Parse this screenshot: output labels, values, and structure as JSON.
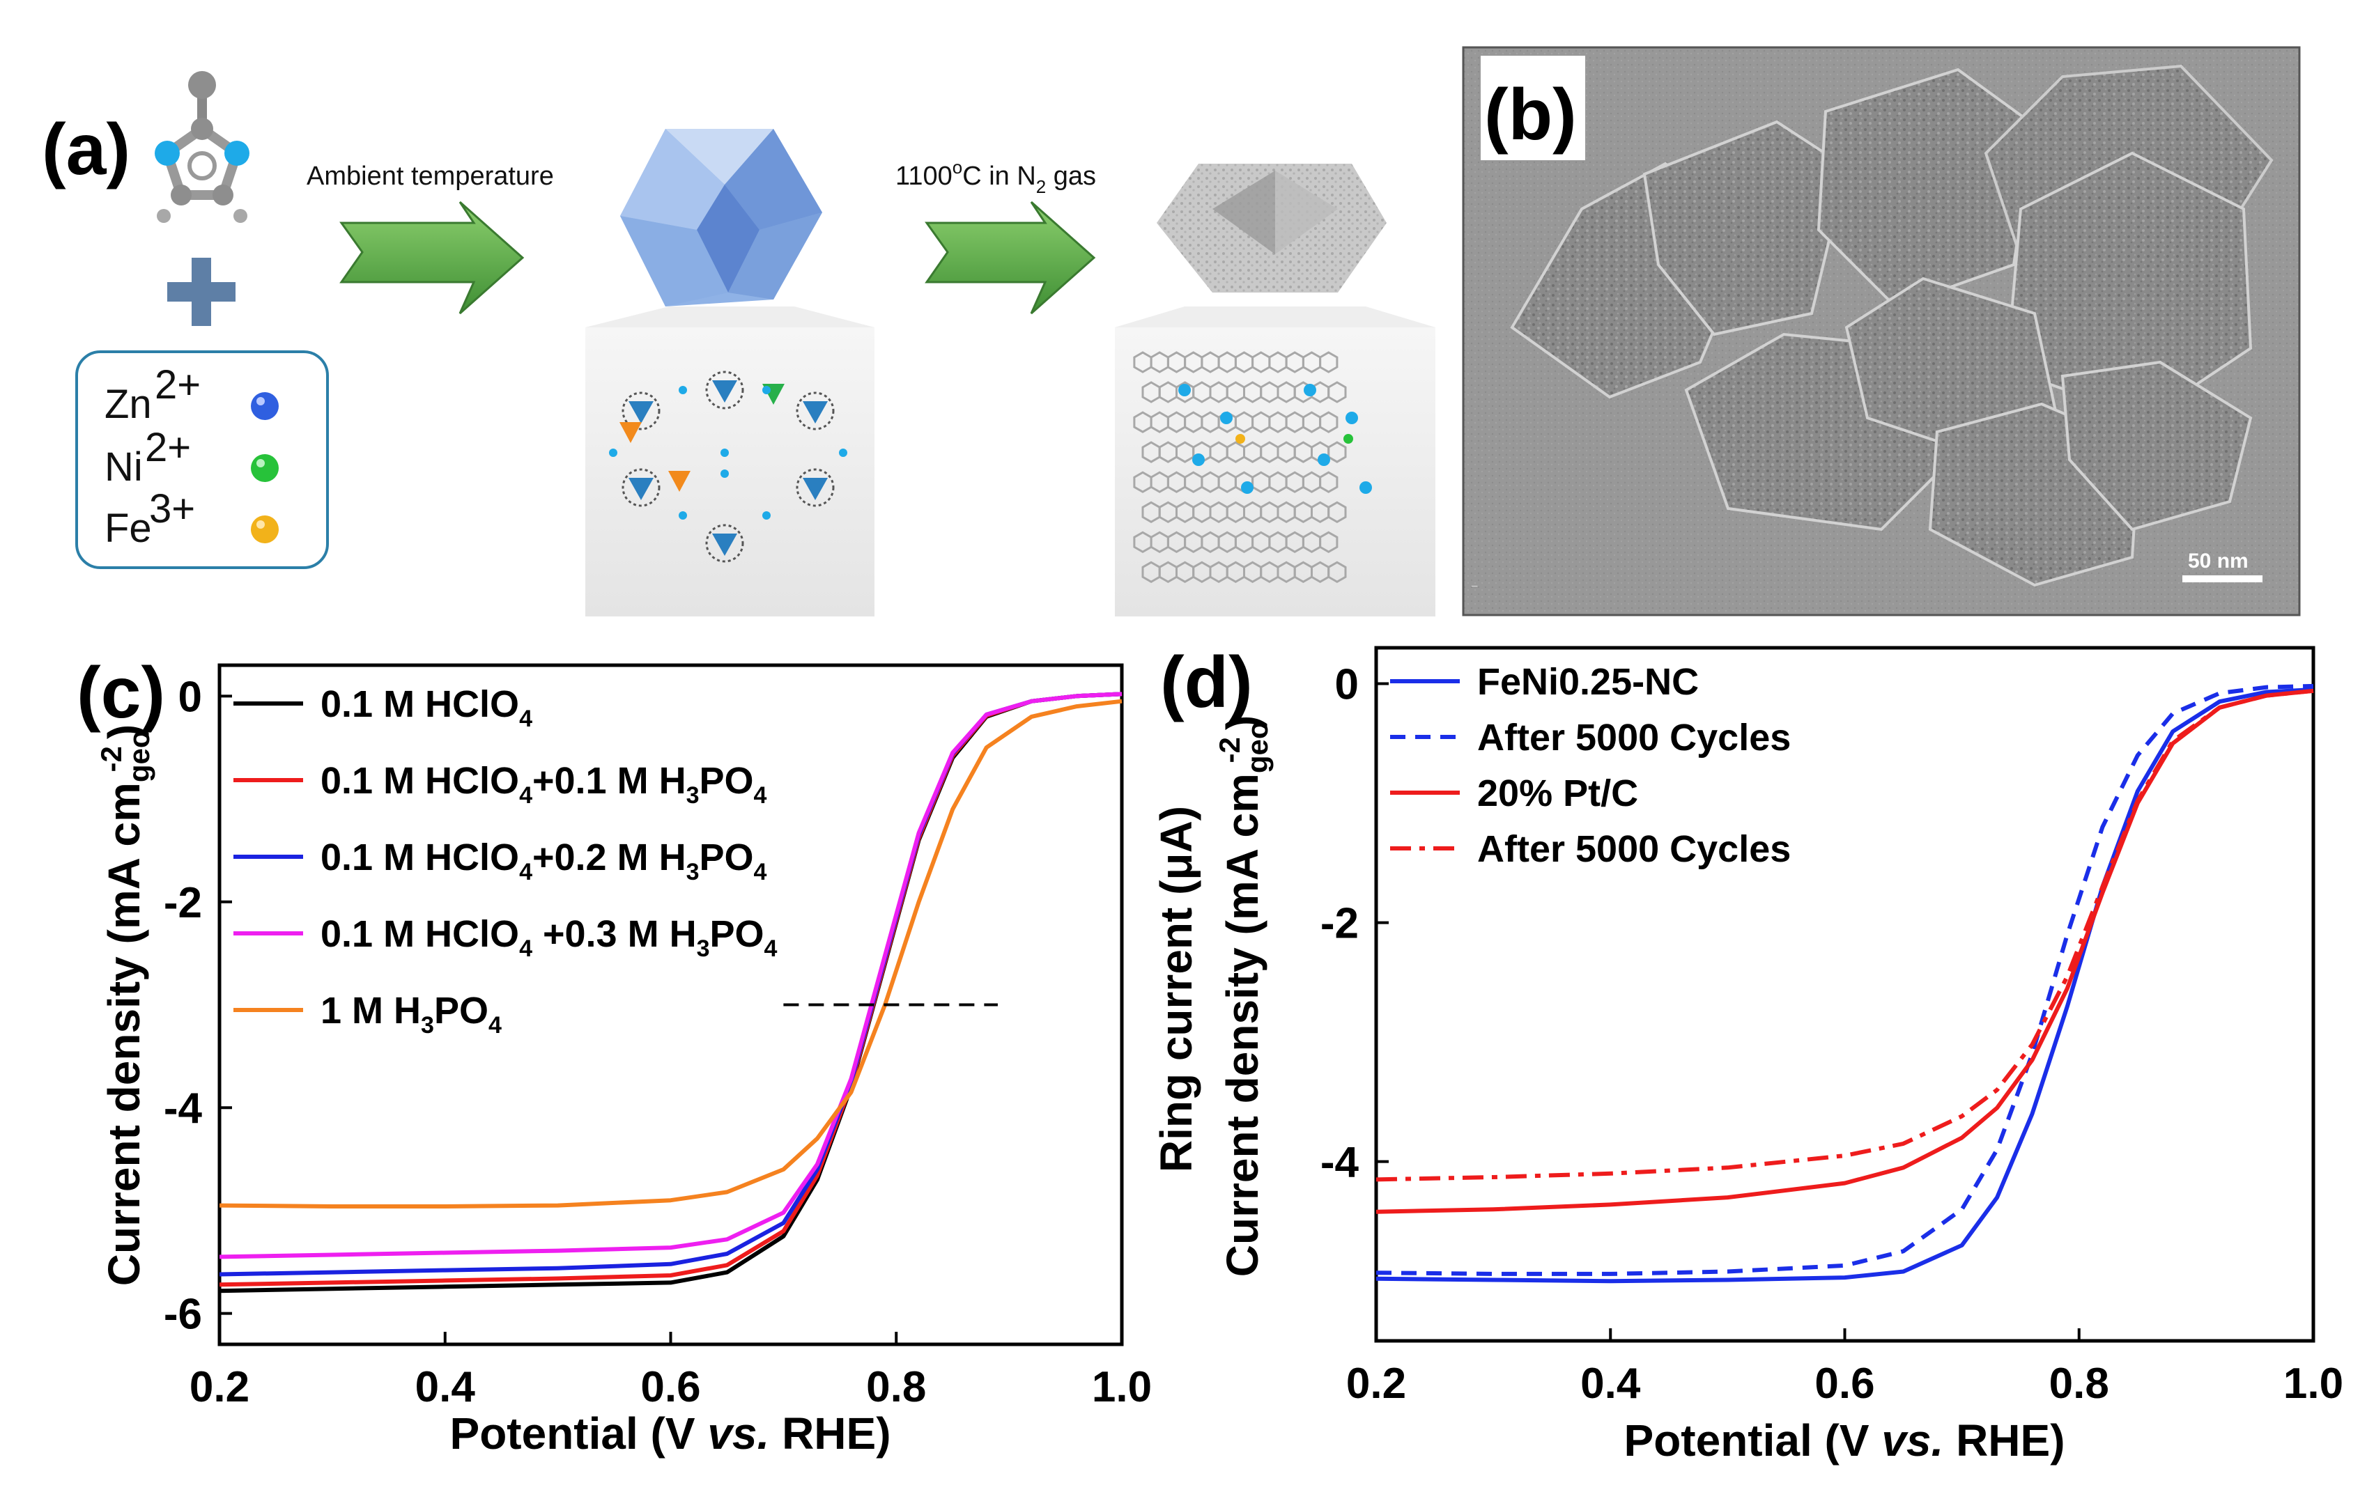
{
  "panel_labels": {
    "a": "(a)",
    "b": "(b)",
    "c": "(c)",
    "d": "(d)"
  },
  "panel_a": {
    "step1_label": "Ambient temperature",
    "step2_label_main": "1100",
    "step2_label_sup": "o",
    "step2_label_mid": "C in N",
    "step2_label_sub": "2",
    "step2_label_end": " gas",
    "ions": [
      {
        "symbol": "Zn",
        "charge": "2+",
        "color": "#2f5fe0"
      },
      {
        "symbol": "Ni",
        "charge": "2+",
        "color": "#27c23a"
      },
      {
        "symbol": "Fe",
        "charge": "3+",
        "color": "#f2b21a"
      }
    ]
  },
  "panel_b": {
    "scale_bar": "50 nm"
  },
  "chart_data": [
    {
      "panel": "c",
      "type": "line",
      "xlabel_pre": "Potential (V ",
      "xlabel_it": "vs.",
      "xlabel_post": " RHE)",
      "ylabel": "Current density (mA cm",
      "ylabel_sub": "geo",
      "ylabel_sup": "-2",
      "ylabel_end": ")",
      "xlim": [
        0.2,
        1.0
      ],
      "ylim": [
        -6.3,
        0.3
      ],
      "xticks": [
        "0.2",
        "0.4",
        "0.6",
        "0.8",
        "1.0"
      ],
      "yticks": [
        "0",
        "-2",
        "-4",
        "-6"
      ],
      "reference_line": {
        "y": -3.0,
        "x": [
          0.7,
          0.89
        ],
        "style": "dashed"
      },
      "series": [
        {
          "name": "0.1 M HClO4",
          "legend": [
            "0.1 M HClO",
            "4",
            "",
            "",
            ""
          ],
          "color": "#000000",
          "x": [
            0.2,
            0.3,
            0.4,
            0.5,
            0.6,
            0.65,
            0.7,
            0.73,
            0.76,
            0.79,
            0.82,
            0.85,
            0.88,
            0.92,
            0.96,
            1.0
          ],
          "y": [
            -5.78,
            -5.76,
            -5.74,
            -5.72,
            -5.7,
            -5.6,
            -5.25,
            -4.7,
            -3.8,
            -2.6,
            -1.4,
            -0.6,
            -0.2,
            -0.05,
            0.0,
            0.02
          ]
        },
        {
          "name": "0.1 M HClO4+0.1 M H3PO4",
          "legend": [
            "0.1 M HClO",
            "4",
            "+0.1 M H",
            "3",
            "PO",
            "4"
          ],
          "color": "#ee1c1c",
          "x": [
            0.2,
            0.3,
            0.4,
            0.5,
            0.6,
            0.65,
            0.7,
            0.73,
            0.76,
            0.79,
            0.82,
            0.85,
            0.88,
            0.92,
            0.96,
            1.0
          ],
          "y": [
            -5.72,
            -5.7,
            -5.68,
            -5.66,
            -5.63,
            -5.53,
            -5.2,
            -4.66,
            -3.78,
            -2.58,
            -1.38,
            -0.58,
            -0.19,
            -0.05,
            0.0,
            0.02
          ]
        },
        {
          "name": "0.1 M HClO4+0.2 M H3PO4",
          "legend": [
            "0.1 M HClO",
            "4",
            "+0.2 M H",
            "3",
            "PO",
            "4"
          ],
          "color": "#1a22e0",
          "x": [
            0.2,
            0.3,
            0.4,
            0.5,
            0.6,
            0.65,
            0.7,
            0.73,
            0.76,
            0.79,
            0.82,
            0.85,
            0.88,
            0.92,
            0.96,
            1.0
          ],
          "y": [
            -5.62,
            -5.6,
            -5.58,
            -5.56,
            -5.52,
            -5.42,
            -5.12,
            -4.6,
            -3.75,
            -2.55,
            -1.35,
            -0.56,
            -0.18,
            -0.05,
            0.0,
            0.02
          ]
        },
        {
          "name": "0.1 M HClO4 +0.3 M H3PO4",
          "legend": [
            "0.1 M HClO",
            "4",
            " +0.3 M H",
            "3",
            "PO",
            "4"
          ],
          "color": "#ee1ff0",
          "x": [
            0.2,
            0.3,
            0.4,
            0.5,
            0.6,
            0.65,
            0.7,
            0.73,
            0.76,
            0.79,
            0.82,
            0.85,
            0.88,
            0.92,
            0.96,
            1.0
          ],
          "y": [
            -5.45,
            -5.43,
            -5.41,
            -5.39,
            -5.36,
            -5.28,
            -5.02,
            -4.55,
            -3.72,
            -2.52,
            -1.33,
            -0.55,
            -0.18,
            -0.05,
            0.0,
            0.02
          ]
        },
        {
          "name": "1 M H3PO4",
          "legend": [
            "1 M H",
            "3",
            "PO",
            "4",
            "",
            ""
          ],
          "color": "#f5821f",
          "x": [
            0.2,
            0.3,
            0.4,
            0.5,
            0.6,
            0.65,
            0.7,
            0.73,
            0.76,
            0.79,
            0.82,
            0.85,
            0.88,
            0.92,
            0.96,
            1.0
          ],
          "y": [
            -4.95,
            -4.96,
            -4.96,
            -4.95,
            -4.9,
            -4.82,
            -4.6,
            -4.3,
            -3.85,
            -3.0,
            -2.0,
            -1.1,
            -0.5,
            -0.2,
            -0.1,
            -0.05
          ]
        }
      ]
    },
    {
      "panel": "d",
      "type": "line",
      "xlabel_pre": "Potential (V ",
      "xlabel_it": "vs.",
      "xlabel_post": " RHE)",
      "ylabel": "Current density (mA cm",
      "ylabel_sub": "geo",
      "ylabel_sup": "-2",
      "ylabel_end": ")",
      "ylabel2": "Ring current (μA)",
      "xlim": [
        0.2,
        1.0
      ],
      "ylim": [
        -5.5,
        0.3
      ],
      "xticks": [
        "0.2",
        "0.4",
        "0.6",
        "0.8",
        "1.0"
      ],
      "yticks": [
        "0",
        "-2",
        "-4"
      ],
      "series": [
        {
          "name": "FeNi0.25-NC",
          "color": "#1a2ee8",
          "dash": "",
          "x": [
            0.2,
            0.3,
            0.4,
            0.5,
            0.6,
            0.65,
            0.7,
            0.73,
            0.76,
            0.79,
            0.82,
            0.85,
            0.88,
            0.92,
            0.96,
            1.0
          ],
          "y": [
            -4.98,
            -4.99,
            -5.0,
            -4.99,
            -4.97,
            -4.92,
            -4.7,
            -4.3,
            -3.6,
            -2.7,
            -1.7,
            -0.9,
            -0.4,
            -0.15,
            -0.07,
            -0.05
          ]
        },
        {
          "name": "After 5000 Cycles",
          "color": "#1a2ee8",
          "dash": "22,14",
          "x": [
            0.2,
            0.3,
            0.4,
            0.5,
            0.6,
            0.65,
            0.7,
            0.73,
            0.76,
            0.79,
            0.82,
            0.85,
            0.88,
            0.92,
            0.96,
            1.0
          ],
          "y": [
            -4.93,
            -4.94,
            -4.94,
            -4.92,
            -4.87,
            -4.75,
            -4.4,
            -3.9,
            -3.1,
            -2.1,
            -1.2,
            -0.6,
            -0.25,
            -0.08,
            -0.03,
            -0.02
          ]
        },
        {
          "name": "20% Pt/C",
          "color": "#ee1c1c",
          "dash": "",
          "x": [
            0.2,
            0.3,
            0.4,
            0.5,
            0.6,
            0.65,
            0.7,
            0.73,
            0.76,
            0.79,
            0.82,
            0.85,
            0.88,
            0.92,
            0.96,
            1.0
          ],
          "y": [
            -4.42,
            -4.4,
            -4.36,
            -4.3,
            -4.18,
            -4.05,
            -3.8,
            -3.55,
            -3.15,
            -2.55,
            -1.75,
            -1.0,
            -0.5,
            -0.2,
            -0.1,
            -0.06
          ]
        },
        {
          "name": "After 5000 Cycles",
          "color": "#ee1c1c",
          "dash": "30,12,8,12",
          "x": [
            0.2,
            0.3,
            0.4,
            0.5,
            0.6,
            0.65,
            0.7,
            0.73,
            0.76,
            0.79,
            0.82,
            0.85,
            0.88,
            0.92,
            0.96,
            1.0
          ],
          "y": [
            -4.15,
            -4.13,
            -4.1,
            -4.05,
            -3.95,
            -3.85,
            -3.62,
            -3.4,
            -3.02,
            -2.45,
            -1.7,
            -0.98,
            -0.48,
            -0.2,
            -0.1,
            -0.06
          ]
        }
      ]
    }
  ]
}
